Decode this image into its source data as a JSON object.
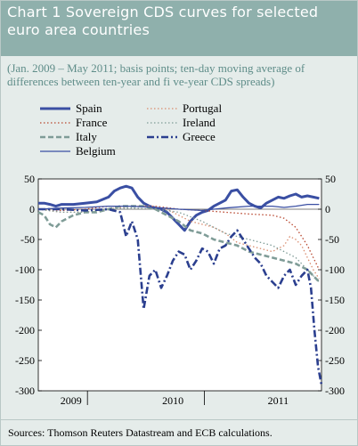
{
  "header": {
    "title": "Chart 1 Sovereign CDS curves for selected\neuro area countries",
    "subtitle": "(Jan. 2009 – May 2011; basis points; ten-day moving average of\ndifferences between ten-year and fi ve-year CDS spreads)"
  },
  "sources": "Sources: Thomson Reuters Datastream and ECB calculations.",
  "chart_data": {
    "type": "line",
    "title": "Sovereign CDS curves for selected euro area countries",
    "ylim": [
      -300,
      50
    ],
    "yticks": [
      50,
      0,
      -50,
      -100,
      -150,
      -200,
      -250,
      -300
    ],
    "x_labels": [
      "2009",
      "2010",
      "2011"
    ],
    "xlim": [
      2009.0,
      2011.42
    ],
    "grid": false,
    "legend": "top",
    "series": [
      {
        "name": "Spain",
        "color": "#3a4fa3",
        "style": "solid-thick",
        "x": [
          2009.0,
          2009.05,
          2009.1,
          2009.15,
          2009.2,
          2009.3,
          2009.4,
          2009.5,
          2009.6,
          2009.65,
          2009.7,
          2009.75,
          2009.8,
          2009.85,
          2009.9,
          2009.95,
          2010.0,
          2010.05,
          2010.1,
          2010.15,
          2010.2,
          2010.25,
          2010.3,
          2010.35,
          2010.4,
          2010.45,
          2010.5,
          2010.55,
          2010.6,
          2010.65,
          2010.7,
          2010.75,
          2010.8,
          2010.85,
          2010.9,
          2010.95,
          2011.0,
          2011.05,
          2011.1,
          2011.15,
          2011.2,
          2011.25,
          2011.3,
          2011.35,
          2011.4
        ],
        "y": [
          10,
          10,
          8,
          5,
          8,
          8,
          10,
          12,
          20,
          30,
          35,
          38,
          35,
          20,
          10,
          5,
          2,
          0,
          -5,
          -15,
          -25,
          -35,
          -20,
          -10,
          -5,
          -2,
          5,
          10,
          15,
          30,
          32,
          20,
          10,
          5,
          2,
          10,
          15,
          20,
          18,
          22,
          25,
          20,
          22,
          20,
          18
        ]
      },
      {
        "name": "France",
        "color": "#b8472f",
        "style": "dotted",
        "x": [
          2009.0,
          2009.2,
          2009.4,
          2009.6,
          2009.8,
          2010.0,
          2010.2,
          2010.4,
          2010.6,
          2010.8,
          2011.0,
          2011.1,
          2011.2,
          2011.25,
          2011.3,
          2011.35,
          2011.4
        ],
        "y": [
          0,
          -2,
          0,
          5,
          5,
          5,
          0,
          -2,
          -5,
          -8,
          -10,
          -15,
          -30,
          -45,
          -60,
          -80,
          -100
        ]
      },
      {
        "name": "Portugal",
        "color": "#d98c6e",
        "style": "dotted",
        "x": [
          2009.0,
          2009.2,
          2009.4,
          2009.6,
          2009.8,
          2010.0,
          2010.1,
          2010.2,
          2010.3,
          2010.4,
          2010.5,
          2010.6,
          2010.7,
          2010.8,
          2010.9,
          2011.0,
          2011.1,
          2011.15,
          2011.2,
          2011.25,
          2011.3,
          2011.35,
          2011.4
        ],
        "y": [
          0,
          -5,
          -5,
          0,
          5,
          5,
          0,
          -10,
          -20,
          -25,
          -30,
          -40,
          -55,
          -60,
          -65,
          -70,
          -60,
          -45,
          -50,
          -60,
          -80,
          -100,
          -115
        ]
      },
      {
        "name": "Italy",
        "color": "#7f9c97",
        "style": "dashed-thick",
        "x": [
          2009.0,
          2009.05,
          2009.1,
          2009.15,
          2009.2,
          2009.3,
          2009.4,
          2009.5,
          2009.6,
          2009.7,
          2009.8,
          2009.9,
          2010.0,
          2010.1,
          2010.2,
          2010.3,
          2010.4,
          2010.5,
          2010.6,
          2010.7,
          2010.8,
          2010.9,
          2011.0,
          2011.1,
          2011.2,
          2011.3,
          2011.35,
          2011.4
        ],
        "y": [
          -5,
          -10,
          -25,
          -30,
          -20,
          -10,
          -5,
          -5,
          0,
          5,
          5,
          5,
          0,
          -10,
          -20,
          -35,
          -40,
          -50,
          -55,
          -60,
          -70,
          -75,
          -80,
          -85,
          -90,
          -100,
          -110,
          -120
        ]
      },
      {
        "name": "Ireland",
        "color": "#7f9c97",
        "style": "dotted",
        "x": [
          2009.0,
          2009.2,
          2009.4,
          2009.6,
          2009.8,
          2010.0,
          2010.2,
          2010.4,
          2010.6,
          2010.8,
          2011.0,
          2011.1,
          2011.2,
          2011.3,
          2011.4
        ],
        "y": [
          0,
          -5,
          -5,
          0,
          2,
          0,
          -5,
          -20,
          -40,
          -50,
          -60,
          -70,
          -80,
          -100,
          -120
        ]
      },
      {
        "name": "Greece",
        "color": "#2b3f8f",
        "style": "dashdot-thick",
        "x": [
          2009.0,
          2009.2,
          2009.4,
          2009.6,
          2009.7,
          2009.75,
          2009.8,
          2009.85,
          2009.9,
          2009.95,
          2010.0,
          2010.05,
          2010.1,
          2010.15,
          2010.2,
          2010.25,
          2010.3,
          2010.35,
          2010.4,
          2010.45,
          2010.5,
          2010.55,
          2010.6,
          2010.65,
          2010.7,
          2010.75,
          2010.8,
          2010.85,
          2010.9,
          2010.95,
          2011.0,
          2011.05,
          2011.1,
          2011.15,
          2011.2,
          2011.25,
          2011.3,
          2011.33,
          2011.36,
          2011.39,
          2011.42
        ],
        "y": [
          0,
          0,
          -2,
          0,
          -5,
          -45,
          -20,
          -50,
          -165,
          -110,
          -100,
          -130,
          -110,
          -85,
          -70,
          -75,
          -100,
          -85,
          -65,
          -70,
          -90,
          -65,
          -60,
          -45,
          -35,
          -50,
          -65,
          -80,
          -90,
          -110,
          -120,
          -130,
          -110,
          -100,
          -125,
          -110,
          -100,
          -130,
          -200,
          -260,
          -290
        ]
      },
      {
        "name": "Belgium",
        "color": "#3a4fa3",
        "style": "solid",
        "x": [
          2009.0,
          2009.2,
          2009.4,
          2009.6,
          2009.8,
          2010.0,
          2010.2,
          2010.4,
          2010.6,
          2010.8,
          2011.0,
          2011.1,
          2011.2,
          2011.3,
          2011.4
        ],
        "y": [
          0,
          2,
          3,
          5,
          5,
          3,
          0,
          -2,
          2,
          5,
          5,
          3,
          5,
          8,
          8
        ]
      }
    ]
  }
}
